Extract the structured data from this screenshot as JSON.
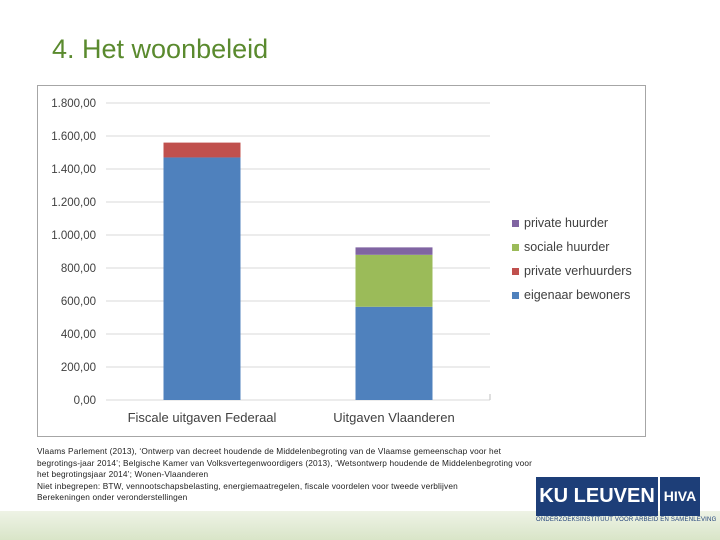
{
  "slide": {
    "title": "4. Het woonbeleid",
    "source_lines": [
      "Vlaams Parlement (2013), ‘Ontwerp van decreet houdende de Middelenbegroting van de Vlaamse gemeenschap voor het",
      "begrotings-jaar 2014’; Belgische Kamer van Volksvertegenwoordigers (2013), ‘Wetsontwerp houdende de Middelenbegroting voor",
      "het begrotingsjaar 2014’; Wonen-Vlaanderen",
      "Niet inbegrepen: BTW, vennootschapsbelasting, energiemaatregelen, fiscale voordelen voor tweede verblijven",
      "Berekeningen onder veronderstellingen"
    ],
    "logo_main": "KU LEUVEN",
    "logo_side": "HIVA",
    "logo_sub": "ONDERZOEKSINSTITUUT VOOR ARBEID EN SAMENLEVING"
  },
  "chart_data": {
    "type": "bar",
    "stacked": true,
    "categories": [
      "Fiscale uitgaven Federaal",
      "Uitgaven Vlaanderen"
    ],
    "series": [
      {
        "name": "eigenaar bewoners",
        "color": "#4f81bd",
        "values": [
          1470,
          565
        ]
      },
      {
        "name": "private verhuurders",
        "color": "#c0504d",
        "values": [
          90,
          0
        ]
      },
      {
        "name": "sociale huurder",
        "color": "#9bbb59",
        "values": [
          0,
          315
        ]
      },
      {
        "name": "private huurder",
        "color": "#8064a2",
        "values": [
          0,
          45
        ]
      }
    ],
    "ylim": [
      0,
      1800
    ],
    "yticks": [
      "0,00",
      "200,00",
      "400,00",
      "600,00",
      "800,00",
      "1.000,00",
      "1.200,00",
      "1.400,00",
      "1.600,00",
      "1.800,00"
    ],
    "grid": true,
    "legend_position": "right",
    "legend_order": [
      "private huurder",
      "sociale huurder",
      "private verhuurders",
      "eigenaar bewoners"
    ]
  }
}
